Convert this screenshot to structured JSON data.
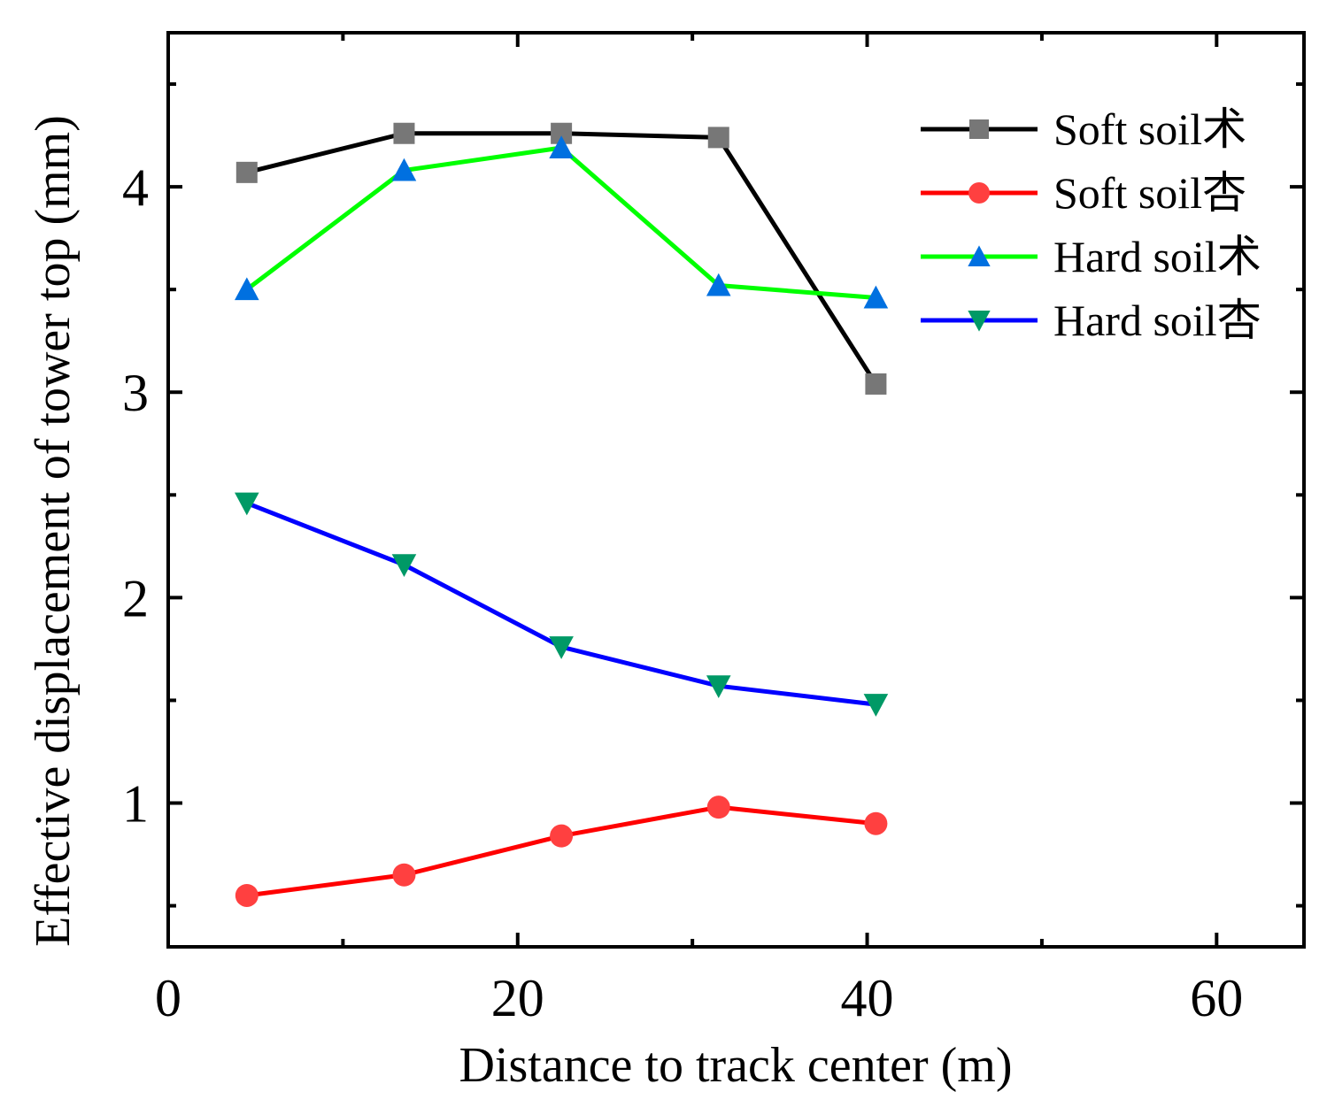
{
  "chart_data": {
    "type": "line",
    "title": "",
    "xlabel": "Distance to track center (m)",
    "ylabel": "Effective displacement of tower top (mm)",
    "xlim": [
      0,
      65
    ],
    "ylim": [
      0.3,
      4.75
    ],
    "xticks": [
      0,
      20,
      40,
      60
    ],
    "xtick_labels": [
      "0",
      "20",
      "40",
      "60"
    ],
    "x_minor_ticks": [
      10,
      30,
      50
    ],
    "yticks": [
      1,
      2,
      3,
      4
    ],
    "ytick_labels": [
      "1",
      "2",
      "3",
      "4"
    ],
    "y_minor_ticks": [
      0.5,
      1.5,
      2.5,
      3.5,
      4.5
    ],
    "grid": false,
    "legend_position": "top-right",
    "x": [
      4.5,
      13.5,
      22.5,
      31.5,
      40.5
    ],
    "series": [
      {
        "name": "Soft soil术",
        "marker": "square",
        "line_color": "#000000",
        "marker_color": "#777777",
        "values": [
          4.07,
          4.26,
          4.26,
          4.24,
          3.04
        ]
      },
      {
        "name": "Soft soil杏",
        "marker": "circle",
        "line_color": "#ff0000",
        "marker_color": "#ff4040",
        "values": [
          0.55,
          0.65,
          0.84,
          0.98,
          0.9
        ]
      },
      {
        "name": "Hard soil术",
        "marker": "triangle-up",
        "line_color": "#00ff00",
        "marker_color": "#0070e0",
        "values": [
          3.5,
          4.08,
          4.19,
          3.52,
          3.46
        ]
      },
      {
        "name": "Hard soil杏",
        "marker": "triangle-down",
        "line_color": "#0000ff",
        "marker_color": "#009966",
        "values": [
          2.46,
          2.16,
          1.76,
          1.57,
          1.48
        ]
      }
    ]
  }
}
